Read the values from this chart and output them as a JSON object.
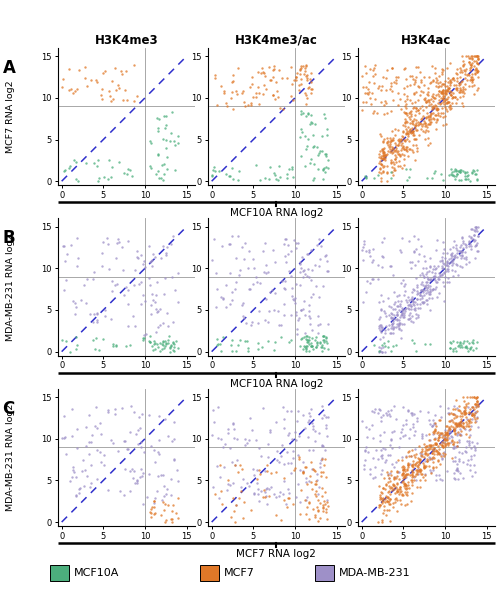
{
  "title_cols": [
    "H3K4me3",
    "H3K4me3/ac",
    "H3K4ac"
  ],
  "row_labels": [
    "A",
    "B",
    "C"
  ],
  "row_ylabels": [
    "MCF7 RNA log2",
    "MDA-MB-231 RNA log2",
    "MDA-MB-231 RNA log2"
  ],
  "row_xlabels": [
    "MCF10A RNA log2",
    "MCF10A RNA log2",
    "MCF7 RNA log2"
  ],
  "colors": {
    "green": "#4CAF7D",
    "orange": "#E07828",
    "purple": "#9E90C8"
  },
  "legend_labels": [
    "MCF10A",
    "MCF7",
    "MDA-MB-231"
  ],
  "legend_colors": [
    "#4CAF7D",
    "#E07828",
    "#9E90C8"
  ],
  "crosshair_x": 10,
  "crosshair_y": 9,
  "xlim": [
    -0.5,
    16
  ],
  "ylim": [
    -0.5,
    16
  ],
  "xticks": [
    0,
    5,
    10,
    15
  ],
  "yticks": [
    0,
    5,
    10,
    15
  ],
  "point_size": 3,
  "point_alpha": 0.75
}
